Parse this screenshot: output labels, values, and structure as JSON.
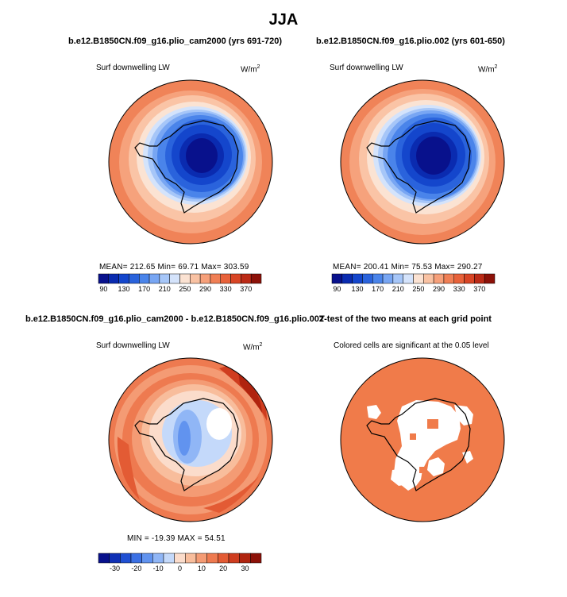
{
  "season_title": "JJA",
  "panels": {
    "top_left": {
      "title": "b.e12.B1850CN.f09_g16.plio_cam2000 (yrs 691-720)",
      "variable": "Surf downwelling LW",
      "units": "W/m",
      "units_exp": "2",
      "stats": "MEAN= 212.65   Min=   69.71   Max= 303.59"
    },
    "top_right": {
      "title": "b.e12.B1850CN.f09_g16.plio.002 (yrs 601-650)",
      "variable": "Surf downwelling LW",
      "units": "W/m",
      "units_exp": "2",
      "stats": "MEAN= 200.41   Min=   75.53   Max= 290.27"
    },
    "bottom_left": {
      "title": "b.e12.B1850CN.f09_g16.plio_cam2000 - b.e12.B1850CN.f09_g16.plio.002",
      "variable": "Surf downwelling LW",
      "units": "W/m",
      "units_exp": "2",
      "stats": "MIN = -19.39  MAX =  54.51"
    },
    "bottom_right": {
      "title": "T-test of the two means at each grid point",
      "subtitle": "Colored cells are significant at the 0.05 level"
    }
  },
  "colorbars": {
    "absolute": {
      "ticks": [
        "90",
        "130",
        "170",
        "210",
        "250",
        "290",
        "330",
        "370"
      ],
      "colors": [
        "#08118c",
        "#0a2bb0",
        "#1446cc",
        "#2a63dc",
        "#4a84ea",
        "#78a6f3",
        "#a6c6f8",
        "#d4e3fb",
        "#fbe2d2",
        "#f9c2a3",
        "#f6a07a",
        "#f07f55",
        "#e8623a",
        "#d84525",
        "#bb2a16",
        "#8c1108"
      ]
    },
    "difference": {
      "ticks": [
        "-30",
        "-20",
        "-10",
        "0",
        "10",
        "20",
        "30"
      ],
      "colors": [
        "#08118c",
        "#0f30b5",
        "#2050d3",
        "#3b70e4",
        "#6193ef",
        "#90b6f6",
        "#c4d9fa",
        "#fbdccb",
        "#f8bd9c",
        "#f49b74",
        "#ee7a50",
        "#e35b34",
        "#cf3d1f",
        "#b0240f",
        "#8c1108"
      ]
    }
  },
  "colors": {
    "significant": "#f07b4a",
    "not_significant": "#ffffff",
    "coastline": "#000000"
  }
}
